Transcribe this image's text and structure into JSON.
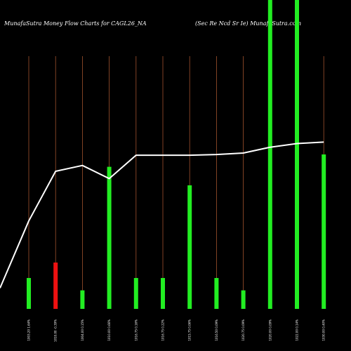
{
  "header": {
    "left_title": "MunafaSutra  Money Flow  Charts for CAGL26_NA",
    "right_title": "(Sec Re    Ncd Sr Ie) MunafaSutra.com"
  },
  "chart_data": {
    "type": "bar",
    "title": "MunafaSutra  Money Flow  Charts for CAGL26_NA",
    "subtitle": "(Sec Re    Ncd Sr Ie) MunafaSutra.com",
    "categories": [
      "1003.20 1.64%",
      "1010.00 -0.39%",
      "1004.00 0.15%",
      "1010.00 0.66%",
      "1016.75 0.16%",
      "1016.75 0.22%",
      "1015.75 0.06%",
      "1016.50 0.09%",
      "1020.75 0.09%",
      "1020.00 0.09%",
      "1022.00 0.14%",
      "1030.00 0.40%"
    ],
    "series": [
      {
        "kind": "volume",
        "values": [
          10,
          15,
          6,
          46,
          10,
          10,
          40,
          10,
          6,
          100,
          100,
          50
        ],
        "colors": [
          "#22ee22",
          "#ee1111",
          "#22ee22",
          "#22ee22",
          "#22ee22",
          "#22ee22",
          "#22ee22",
          "#22ee22",
          "#22ee22",
          "#22ee22",
          "#22ee22",
          "#22ee22"
        ]
      },
      {
        "kind": "price",
        "values": [
          1003.2,
          1010.0,
          1010.8,
          1009.0,
          1012.2,
          1012.2,
          1012.2,
          1012.3,
          1012.5,
          1013.3,
          1013.8,
          1014.0
        ]
      }
    ],
    "start_value": 994,
    "ylim_volume": [
      0,
      100
    ],
    "ylim_price": [
      990,
      1020
    ],
    "grid": true,
    "colors": {
      "background": "#000000",
      "grid": "#a0522d",
      "line": "#ffffff",
      "up": "#22ee22",
      "down": "#ee1111"
    }
  }
}
